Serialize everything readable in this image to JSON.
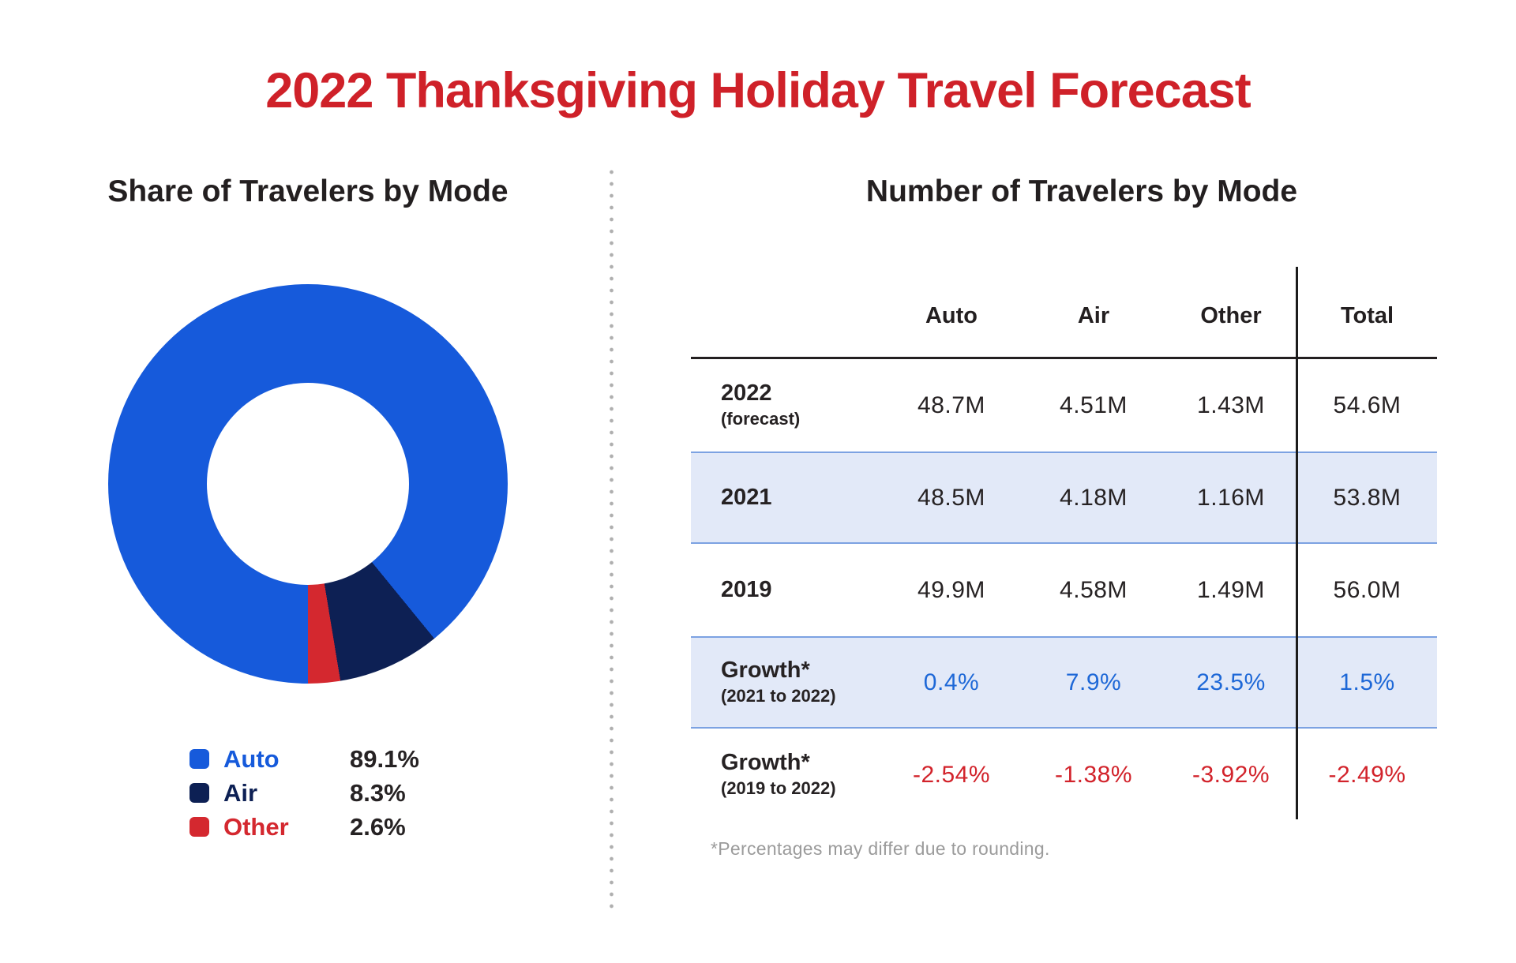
{
  "title": "2022 Thanksgiving Holiday Travel Forecast",
  "colors": {
    "title_red": "#cf2129",
    "auto_blue": "#165adb",
    "air_navy": "#0d2054",
    "other_red": "#d4282f",
    "growth_blue": "#1e68d7",
    "growth_red": "#d2232b",
    "text_dark": "#262223",
    "stripe_bg": "#e2e9f8",
    "stripe_border": "#7ca2e2",
    "footnote_gray": "#9b9b9b"
  },
  "left": {
    "heading": "Share of Travelers by Mode",
    "legend": [
      {
        "label": "Auto",
        "value": "89.1%",
        "color_key": "auto_blue"
      },
      {
        "label": "Air",
        "value": "8.3%",
        "color_key": "air_navy"
      },
      {
        "label": "Other",
        "value": "2.6%",
        "color_key": "other_red"
      }
    ]
  },
  "right": {
    "heading": "Number of Travelers by Mode",
    "columns": [
      "Auto",
      "Air",
      "Other",
      "Total"
    ],
    "rows": [
      {
        "label": "2022",
        "sublabel": "(forecast)",
        "values": [
          "48.7M",
          "4.51M",
          "1.43M",
          "54.6M"
        ],
        "highlight": false,
        "value_style": "dark"
      },
      {
        "label": "2021",
        "sublabel": "",
        "values": [
          "48.5M",
          "4.18M",
          "1.16M",
          "53.8M"
        ],
        "highlight": true,
        "value_style": "dark"
      },
      {
        "label": "2019",
        "sublabel": "",
        "values": [
          "49.9M",
          "4.58M",
          "1.49M",
          "56.0M"
        ],
        "highlight": false,
        "value_style": "dark"
      },
      {
        "label": "Growth*",
        "sublabel": "(2021 to 2022)",
        "values": [
          "0.4%",
          "7.9%",
          "23.5%",
          "1.5%"
        ],
        "highlight": true,
        "value_style": "blue"
      },
      {
        "label": "Growth*",
        "sublabel": "(2019 to 2022)",
        "values": [
          "-2.54%",
          "-1.38%",
          "-3.92%",
          "-2.49%"
        ],
        "highlight": false,
        "value_style": "red"
      }
    ],
    "footnote": "*Percentages may differ due to rounding."
  },
  "chart_data": [
    {
      "type": "pie",
      "donut": true,
      "title": "Share of Travelers by Mode",
      "labels": [
        "Auto",
        "Air",
        "Other"
      ],
      "values": [
        89.1,
        8.3,
        2.6
      ],
      "unit": "percent of travelers",
      "colors": [
        "#165adb",
        "#0d2054",
        "#d4282f"
      ],
      "start_angle_deg": 180,
      "direction": "clockwise",
      "legend_position": "bottom-left"
    },
    {
      "type": "table",
      "title": "Number of Travelers by Mode",
      "columns": [
        "Auto",
        "Air",
        "Other",
        "Total"
      ],
      "rows": [
        {
          "label": "2022 (forecast)",
          "values": [
            "48.7M",
            "4.51M",
            "1.43M",
            "54.6M"
          ]
        },
        {
          "label": "2021",
          "values": [
            "48.5M",
            "4.18M",
            "1.16M",
            "53.8M"
          ]
        },
        {
          "label": "2019",
          "values": [
            "49.9M",
            "4.58M",
            "1.49M",
            "56.0M"
          ]
        },
        {
          "label": "Growth* (2021 to 2022)",
          "values": [
            "0.4%",
            "7.9%",
            "23.5%",
            "1.5%"
          ]
        },
        {
          "label": "Growth* (2019 to 2022)",
          "values": [
            "-2.54%",
            "-1.38%",
            "-3.92%",
            "-2.49%"
          ]
        }
      ],
      "footnote": "*Percentages may differ due to rounding."
    }
  ]
}
